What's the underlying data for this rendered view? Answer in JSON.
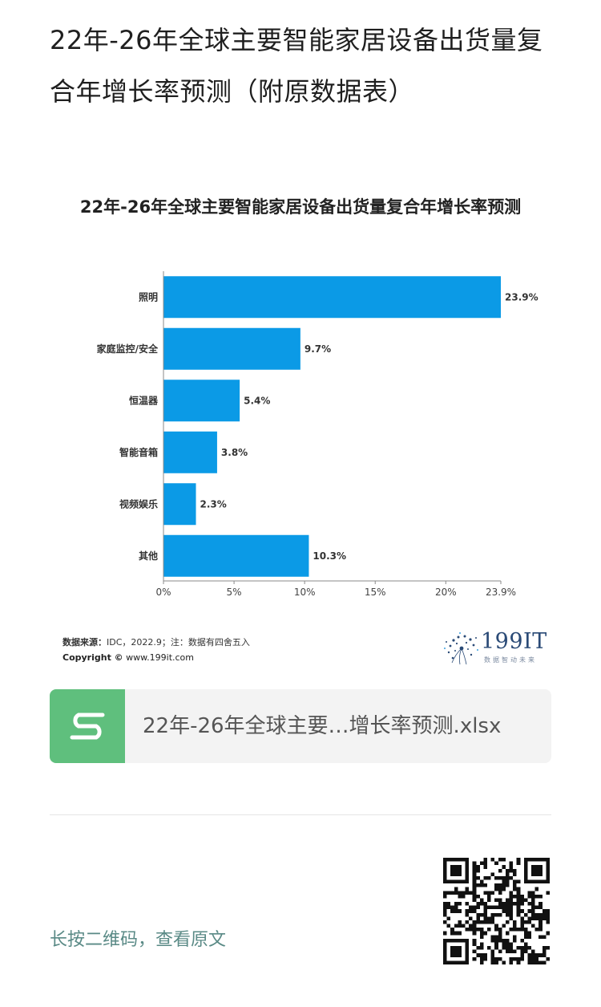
{
  "article": {
    "title": "22年-26年全球主要智能家居设备出货量复合年增长率预测（附原数据表）"
  },
  "chart_data": {
    "type": "bar",
    "orientation": "horizontal",
    "title": "22年-26年全球主要智能家居设备出货量复合年增长率预测",
    "categories": [
      "照明",
      "家庭监控/安全",
      "恒温器",
      "智能音箱",
      "视频娱乐",
      "其他"
    ],
    "values": [
      23.9,
      9.7,
      5.4,
      3.8,
      2.3,
      10.3
    ],
    "value_labels": [
      "23.9%",
      "9.7%",
      "5.4%",
      "3.8%",
      "2.3%",
      "10.3%"
    ],
    "xticks": [
      "0%",
      "5%",
      "10%",
      "15%",
      "20%",
      "23.9%"
    ],
    "xtick_values": [
      0,
      5,
      10,
      15,
      20,
      23.9
    ],
    "xlim": [
      0,
      23.9
    ],
    "xlabel": "",
    "ylabel": "",
    "grid": false,
    "bar_color": "#0b9ae6"
  },
  "source": {
    "label": "数据来源：",
    "text": "IDC，2022.9；注：数据有四舍五入"
  },
  "copyright": {
    "label": "Copyright ©",
    "url": "www.199it.com"
  },
  "logo": {
    "name": "199IT",
    "tagline": "数据智动未来"
  },
  "attachment": {
    "icon": "spreadsheet-s-icon",
    "file_name": "22年-26年全球主要…增长率预测.xlsx",
    "icon_color": "#5fbf7d"
  },
  "footer": {
    "qr_hint": "长按二维码，查看原文",
    "qr_icon": "qr-code-icon"
  }
}
